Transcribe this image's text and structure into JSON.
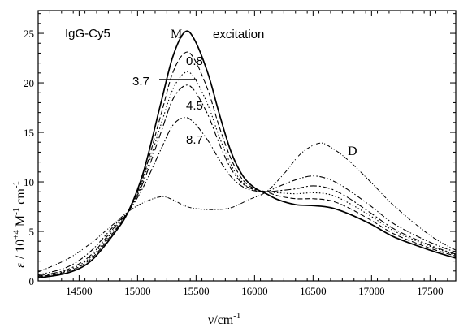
{
  "chart_data": {
    "type": "line",
    "panel_label": "IgG-Cy5",
    "xlabel_base": "ν/cm",
    "xlabel_exp": "-1",
    "ylabel_base": "ε / 10",
    "ylabel_exp1": "+4",
    "ylabel_mid": " M",
    "ylabel_exp2": "-1",
    "ylabel_unit2": " cm",
    "ylabel_exp3": "-1",
    "xlim": [
      14150,
      17720
    ],
    "ylim": [
      0,
      27.3
    ],
    "xticks": [
      14500,
      15000,
      15500,
      16000,
      16500,
      17000,
      17500
    ],
    "yticks": [
      0,
      5,
      10,
      15,
      20,
      25
    ],
    "xtick_labels": [
      "14500",
      "15000",
      "15500",
      "16000",
      "16500",
      "17000",
      "17500"
    ],
    "ytick_labels": [
      "0",
      "5",
      "10",
      "15",
      "20",
      "25"
    ],
    "annotations": {
      "M": "M",
      "excitation": "excitation",
      "label_08": "0.8",
      "label_37": "3.7",
      "label_45": "4.5",
      "label_87": "8.7",
      "D": "D"
    },
    "series": [
      {
        "label": "M",
        "style": "solid",
        "width": 1.7,
        "points": [
          [
            14150,
            0.3
          ],
          [
            14400,
            0.8
          ],
          [
            14600,
            2.0
          ],
          [
            14800,
            4.8
          ],
          [
            14920,
            7.0
          ],
          [
            15050,
            11.0
          ],
          [
            15200,
            18.0
          ],
          [
            15300,
            22.6
          ],
          [
            15400,
            25.1
          ],
          [
            15480,
            24.5
          ],
          [
            15600,
            21.0
          ],
          [
            15700,
            16.8
          ],
          [
            15800,
            13.0
          ],
          [
            15900,
            10.6
          ],
          [
            16000,
            9.4
          ],
          [
            16100,
            8.8
          ],
          [
            16200,
            8.2
          ],
          [
            16350,
            7.7
          ],
          [
            16500,
            7.6
          ],
          [
            16650,
            7.4
          ],
          [
            16800,
            6.8
          ],
          [
            17000,
            5.7
          ],
          [
            17200,
            4.4
          ],
          [
            17500,
            3.1
          ],
          [
            17720,
            2.3
          ]
        ]
      },
      {
        "label": "0.8",
        "style": "dashed",
        "width": 1.1,
        "points": [
          [
            14150,
            0.4
          ],
          [
            14400,
            0.95
          ],
          [
            14600,
            2.2
          ],
          [
            14800,
            5.0
          ],
          [
            14920,
            7.0
          ],
          [
            15050,
            10.6
          ],
          [
            15200,
            16.8
          ],
          [
            15300,
            21.0
          ],
          [
            15400,
            23.0
          ],
          [
            15480,
            22.5
          ],
          [
            15600,
            19.3
          ],
          [
            15700,
            15.5
          ],
          [
            15800,
            12.3
          ],
          [
            15900,
            10.2
          ],
          [
            16000,
            9.3
          ],
          [
            16100,
            9.0
          ],
          [
            16200,
            8.6
          ],
          [
            16350,
            8.3
          ],
          [
            16500,
            8.3
          ],
          [
            16650,
            8.1
          ],
          [
            16800,
            7.4
          ],
          [
            17000,
            6.1
          ],
          [
            17200,
            4.7
          ],
          [
            17500,
            3.3
          ],
          [
            17720,
            2.5
          ]
        ]
      },
      {
        "label": "3.7",
        "style": "dotted",
        "width": 1.1,
        "points": [
          [
            14150,
            0.45
          ],
          [
            14400,
            1.05
          ],
          [
            14600,
            2.4
          ],
          [
            14800,
            5.2
          ],
          [
            14920,
            7.0
          ],
          [
            15050,
            10.3
          ],
          [
            15200,
            15.8
          ],
          [
            15300,
            19.3
          ],
          [
            15400,
            21.0
          ],
          [
            15480,
            20.6
          ],
          [
            15600,
            17.8
          ],
          [
            15700,
            14.5
          ],
          [
            15800,
            11.7
          ],
          [
            15900,
            9.9
          ],
          [
            16000,
            9.2
          ],
          [
            16100,
            9.0
          ],
          [
            16200,
            8.9
          ],
          [
            16350,
            8.8
          ],
          [
            16500,
            8.9
          ],
          [
            16650,
            8.7
          ],
          [
            16800,
            7.9
          ],
          [
            17000,
            6.5
          ],
          [
            17200,
            5.0
          ],
          [
            17500,
            3.5
          ],
          [
            17720,
            2.6
          ]
        ]
      },
      {
        "label": "4.5",
        "style": "dashdot",
        "width": 1.1,
        "points": [
          [
            14150,
            0.5
          ],
          [
            14400,
            1.15
          ],
          [
            14600,
            2.6
          ],
          [
            14800,
            5.4
          ],
          [
            14920,
            7.0
          ],
          [
            15050,
            10.0
          ],
          [
            15200,
            15.0
          ],
          [
            15300,
            18.3
          ],
          [
            15400,
            19.7
          ],
          [
            15480,
            19.3
          ],
          [
            15600,
            16.8
          ],
          [
            15700,
            13.8
          ],
          [
            15800,
            11.3
          ],
          [
            15900,
            9.8
          ],
          [
            16000,
            9.2
          ],
          [
            16100,
            9.0
          ],
          [
            16200,
            9.1
          ],
          [
            16350,
            9.3
          ],
          [
            16500,
            9.6
          ],
          [
            16650,
            9.3
          ],
          [
            16800,
            8.4
          ],
          [
            17000,
            6.8
          ],
          [
            17200,
            5.2
          ],
          [
            17500,
            3.6
          ],
          [
            17720,
            2.7
          ]
        ]
      },
      {
        "label": "8.7",
        "style": "dashdotdot",
        "width": 1.1,
        "points": [
          [
            14150,
            0.6
          ],
          [
            14400,
            1.4
          ],
          [
            14600,
            3.0
          ],
          [
            14800,
            5.6
          ],
          [
            14920,
            7.0
          ],
          [
            15050,
            9.5
          ],
          [
            15200,
            13.3
          ],
          [
            15300,
            15.7
          ],
          [
            15400,
            16.5
          ],
          [
            15480,
            16.0
          ],
          [
            15600,
            14.2
          ],
          [
            15700,
            12.2
          ],
          [
            15800,
            10.5
          ],
          [
            15900,
            9.5
          ],
          [
            16000,
            9.1
          ],
          [
            16100,
            9.0
          ],
          [
            16200,
            9.5
          ],
          [
            16350,
            10.2
          ],
          [
            16500,
            10.6
          ],
          [
            16650,
            10.2
          ],
          [
            16800,
            9.2
          ],
          [
            17000,
            7.5
          ],
          [
            17200,
            5.7
          ],
          [
            17500,
            3.9
          ],
          [
            17720,
            2.9
          ]
        ]
      },
      {
        "label": "D",
        "style": "dashdotdot-fine",
        "width": 1.0,
        "points": [
          [
            14150,
            0.9
          ],
          [
            14400,
            2.2
          ],
          [
            14600,
            3.8
          ],
          [
            14800,
            5.8
          ],
          [
            14920,
            7.0
          ],
          [
            15050,
            7.9
          ],
          [
            15200,
            8.5
          ],
          [
            15300,
            8.2
          ],
          [
            15400,
            7.6
          ],
          [
            15500,
            7.3
          ],
          [
            15650,
            7.2
          ],
          [
            15800,
            7.4
          ],
          [
            15950,
            8.2
          ],
          [
            16100,
            9.0
          ],
          [
            16250,
            10.8
          ],
          [
            16400,
            12.9
          ],
          [
            16550,
            13.9
          ],
          [
            16650,
            13.5
          ],
          [
            16800,
            12.2
          ],
          [
            17000,
            9.9
          ],
          [
            17200,
            7.5
          ],
          [
            17500,
            4.6
          ],
          [
            17720,
            3.1
          ]
        ]
      }
    ]
  }
}
